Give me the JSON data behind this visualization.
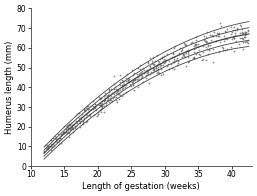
{
  "title": "",
  "xlabel": "Length of gestation (weeks)",
  "ylabel": "Humerus length (mm)",
  "xlim": [
    10,
    43
  ],
  "ylim": [
    0,
    80
  ],
  "xticks": [
    10,
    15,
    20,
    25,
    30,
    35,
    40
  ],
  "yticks": [
    0,
    10,
    20,
    30,
    40,
    50,
    60,
    70,
    80
  ],
  "bg_color": "#ffffff",
  "line_color": "#444444",
  "scatter_color": "#666666",
  "mean_a": -41.5,
  "mean_b": 4.58,
  "mean_c": -0.0477,
  "sd_a": 0.88,
  "sd_b": 0.055,
  "offsets": [
    -1.96,
    -1.0,
    0.0,
    1.0,
    1.96
  ],
  "n_points": 500,
  "ga_min": 12.0,
  "ga_max": 42.5
}
